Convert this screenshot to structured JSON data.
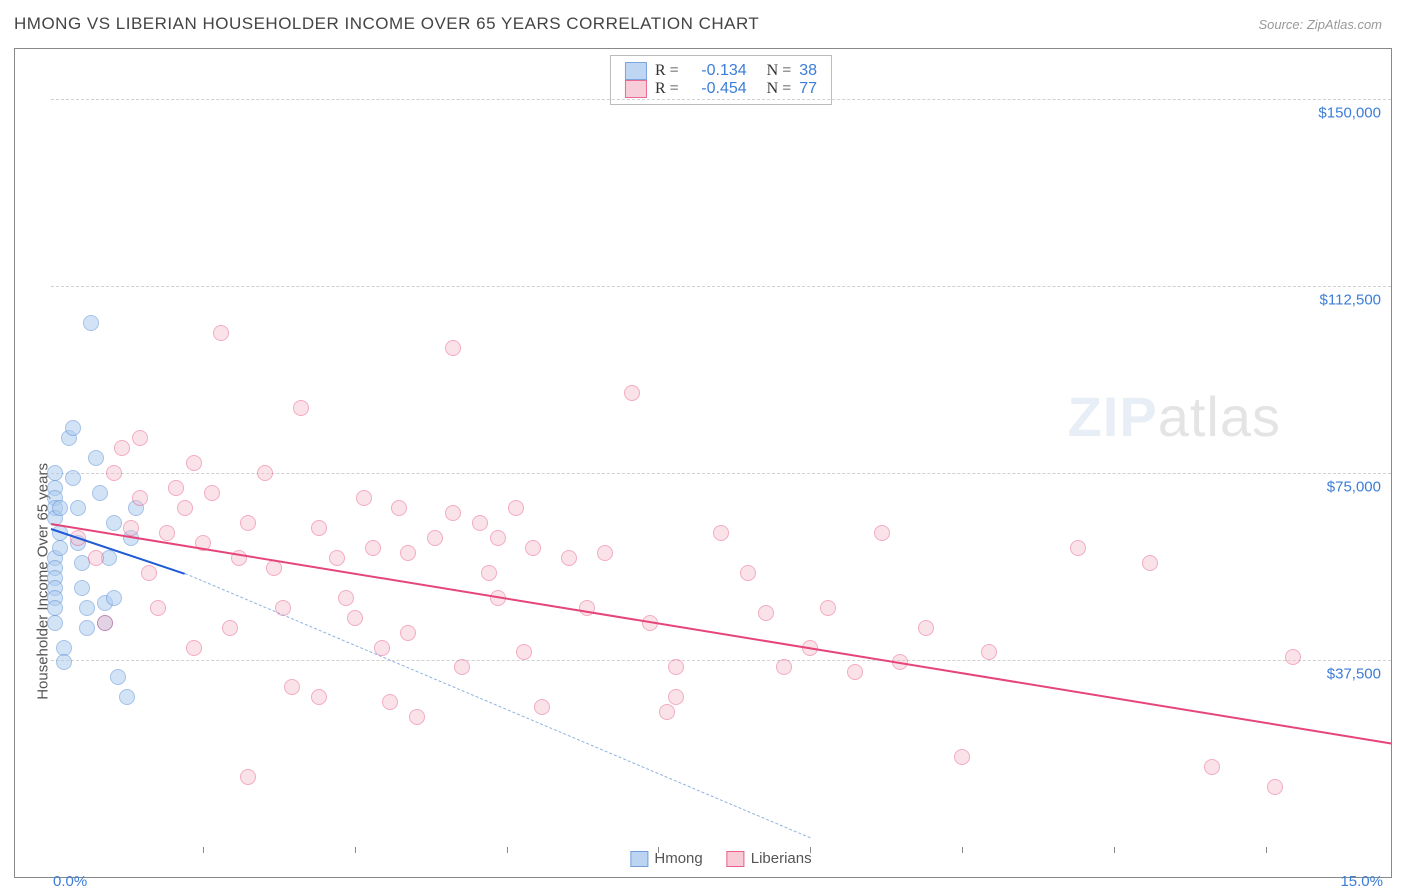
{
  "header": {
    "title": "HMONG VS LIBERIAN HOUSEHOLDER INCOME OVER 65 YEARS CORRELATION CHART",
    "source": "Source: ZipAtlas.com"
  },
  "chart": {
    "type": "scatter",
    "ylabel": "Householder Income Over 65 years",
    "xlim": [
      0,
      15
    ],
    "ylim": [
      0,
      160000
    ],
    "xtick_min_label": "0.0%",
    "xtick_max_label": "15.0%",
    "xtick_positions": [
      1.7,
      3.4,
      5.1,
      6.8,
      8.5,
      10.2,
      11.9,
      13.6
    ],
    "ytick_lines": [
      {
        "v": 37500,
        "label": "$37,500"
      },
      {
        "v": 75000,
        "label": "$75,000"
      },
      {
        "v": 112500,
        "label": "$112,500"
      },
      {
        "v": 150000,
        "label": "$150,000"
      }
    ],
    "grid_color": "#d0d0d0",
    "background_color": "#ffffff",
    "marker_radius": 8,
    "marker_border_width": 1.2,
    "series": [
      {
        "name": "Hmong",
        "fill": "#aecdf0",
        "stroke": "#5b8fd6",
        "fill_opacity": 0.55,
        "reg_color": "#1f5bd6",
        "reg_dash_color": "#8fb3e0",
        "R": "-0.134",
        "N": "38",
        "reg_line": {
          "x1": 0.0,
          "y1": 64000,
          "x2": 1.5,
          "y2": 55000
        },
        "reg_dash": {
          "x1": 1.5,
          "y1": 55000,
          "x2": 8.5,
          "y2": 2000
        },
        "points": [
          [
            0.05,
            75000
          ],
          [
            0.05,
            72000
          ],
          [
            0.05,
            70000
          ],
          [
            0.05,
            68000
          ],
          [
            0.05,
            66000
          ],
          [
            0.05,
            58000
          ],
          [
            0.05,
            56000
          ],
          [
            0.05,
            54000
          ],
          [
            0.05,
            52000
          ],
          [
            0.05,
            50000
          ],
          [
            0.05,
            48000
          ],
          [
            0.05,
            45000
          ],
          [
            0.1,
            60000
          ],
          [
            0.1,
            63000
          ],
          [
            0.1,
            68000
          ],
          [
            0.15,
            40000
          ],
          [
            0.15,
            37000
          ],
          [
            0.2,
            82000
          ],
          [
            0.25,
            84000
          ],
          [
            0.25,
            74000
          ],
          [
            0.3,
            68000
          ],
          [
            0.3,
            61000
          ],
          [
            0.35,
            57000
          ],
          [
            0.35,
            52000
          ],
          [
            0.4,
            48000
          ],
          [
            0.4,
            44000
          ],
          [
            0.45,
            105000
          ],
          [
            0.5,
            78000
          ],
          [
            0.55,
            71000
          ],
          [
            0.6,
            49000
          ],
          [
            0.6,
            45000
          ],
          [
            0.65,
            58000
          ],
          [
            0.7,
            50000
          ],
          [
            0.7,
            65000
          ],
          [
            0.75,
            34000
          ],
          [
            0.85,
            30000
          ],
          [
            0.9,
            62000
          ],
          [
            0.95,
            68000
          ]
        ]
      },
      {
        "name": "Liberians",
        "fill": "#f6c1d0",
        "stroke": "#e6457a",
        "fill_opacity": 0.45,
        "reg_color": "#e6457a",
        "R": "-0.454",
        "N": "77",
        "reg_line": {
          "x1": 0.0,
          "y1": 65000,
          "x2": 15.0,
          "y2": 21000
        },
        "points": [
          [
            0.3,
            62000
          ],
          [
            0.5,
            58000
          ],
          [
            0.6,
            45000
          ],
          [
            0.7,
            75000
          ],
          [
            0.8,
            80000
          ],
          [
            0.9,
            64000
          ],
          [
            1.0,
            70000
          ],
          [
            1.0,
            82000
          ],
          [
            1.1,
            55000
          ],
          [
            1.2,
            48000
          ],
          [
            1.3,
            63000
          ],
          [
            1.4,
            72000
          ],
          [
            1.5,
            68000
          ],
          [
            1.6,
            77000
          ],
          [
            1.6,
            40000
          ],
          [
            1.7,
            61000
          ],
          [
            1.8,
            71000
          ],
          [
            1.9,
            103000
          ],
          [
            2.0,
            44000
          ],
          [
            2.1,
            58000
          ],
          [
            2.2,
            65000
          ],
          [
            2.2,
            14000
          ],
          [
            2.4,
            75000
          ],
          [
            2.5,
            56000
          ],
          [
            2.6,
            48000
          ],
          [
            2.7,
            32000
          ],
          [
            2.8,
            88000
          ],
          [
            3.0,
            64000
          ],
          [
            3.0,
            30000
          ],
          [
            3.2,
            58000
          ],
          [
            3.3,
            50000
          ],
          [
            3.4,
            46000
          ],
          [
            3.5,
            70000
          ],
          [
            3.6,
            60000
          ],
          [
            3.7,
            40000
          ],
          [
            3.8,
            29000
          ],
          [
            3.9,
            68000
          ],
          [
            4.0,
            59000
          ],
          [
            4.0,
            43000
          ],
          [
            4.1,
            26000
          ],
          [
            4.3,
            62000
          ],
          [
            4.5,
            100000
          ],
          [
            4.5,
            67000
          ],
          [
            4.6,
            36000
          ],
          [
            4.8,
            65000
          ],
          [
            4.9,
            55000
          ],
          [
            5.0,
            50000
          ],
          [
            5.0,
            62000
          ],
          [
            5.2,
            68000
          ],
          [
            5.3,
            39000
          ],
          [
            5.4,
            60000
          ],
          [
            5.5,
            28000
          ],
          [
            5.8,
            58000
          ],
          [
            6.0,
            48000
          ],
          [
            6.2,
            59000
          ],
          [
            6.5,
            91000
          ],
          [
            6.7,
            45000
          ],
          [
            6.9,
            27000
          ],
          [
            7.0,
            36000
          ],
          [
            7.0,
            30000
          ],
          [
            7.5,
            63000
          ],
          [
            7.8,
            55000
          ],
          [
            8.0,
            47000
          ],
          [
            8.2,
            36000
          ],
          [
            8.5,
            40000
          ],
          [
            8.7,
            48000
          ],
          [
            9.0,
            35000
          ],
          [
            9.3,
            63000
          ],
          [
            9.5,
            37000
          ],
          [
            9.8,
            44000
          ],
          [
            10.2,
            18000
          ],
          [
            10.5,
            39000
          ],
          [
            11.5,
            60000
          ],
          [
            12.3,
            57000
          ],
          [
            13.0,
            16000
          ],
          [
            13.7,
            12000
          ],
          [
            13.9,
            38000
          ]
        ]
      }
    ],
    "legend_bottom": [
      {
        "label": "Hmong",
        "fill": "#aecdf0",
        "stroke": "#5b8fd6"
      },
      {
        "label": "Liberians",
        "fill": "#f6c1d0",
        "stroke": "#e6457a"
      }
    ]
  },
  "watermark": {
    "part1": "ZIP",
    "part2": "atlas"
  }
}
